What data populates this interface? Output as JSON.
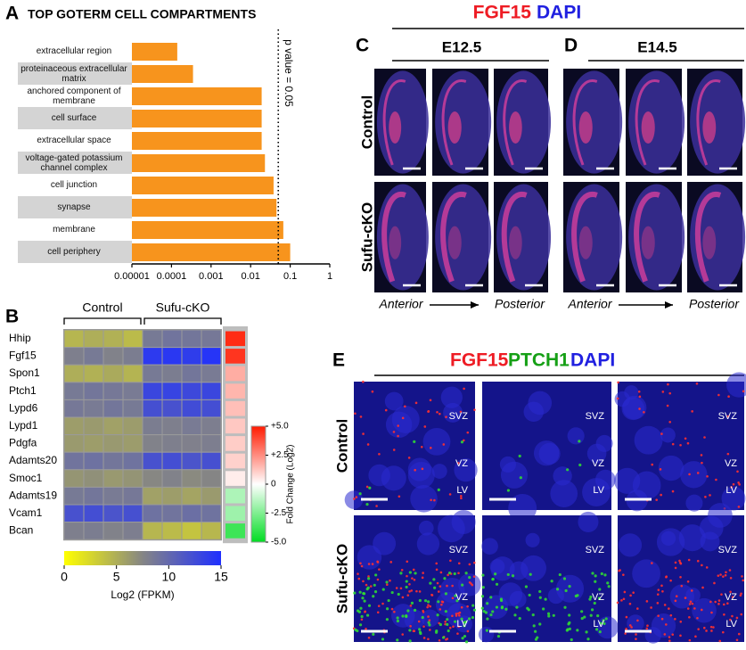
{
  "chart_data": [
    {
      "type": "hbar",
      "panel": "A",
      "title": "TOP GOTERM CELL COMPARTMENTS",
      "categories": [
        "extracellular region",
        "proteinaceous extracellular matrix",
        "anchored component of membrane",
        "cell surface",
        "extracellular space",
        "voltage-gated potassium channel complex",
        "cell junction",
        "synapse",
        "membrane",
        "cell periphery"
      ],
      "values": [
        0.00014,
        0.00035,
        0.019,
        0.019,
        0.019,
        0.023,
        0.038,
        0.045,
        0.067,
        0.1
      ],
      "color": "#f7941d",
      "xscale": "log",
      "xlim": [
        1e-05,
        1
      ],
      "xticks": [
        1e-05,
        0.0001,
        0.001,
        0.01,
        0.1,
        1
      ],
      "reference_line": {
        "value": 0.05,
        "label": "p value = 0.05"
      }
    },
    {
      "type": "heatmap",
      "panel": "B",
      "groups": [
        "Control",
        "Sufu-cKO"
      ],
      "rows": [
        "Hhip",
        "Fgf15",
        "Spon1",
        "Ptch1",
        "Lypd6",
        "Lypd1",
        "Pdgfa",
        "Adamts20",
        "Smoc1",
        "Adamts19",
        "Vcam1",
        "Bcan"
      ],
      "values": [
        [
          4.5,
          5,
          4.8,
          4.2,
          8.5,
          9,
          8.8,
          8.6
        ],
        [
          8,
          8.5,
          7.8,
          8.2,
          14,
          14.2,
          13.8,
          14.5
        ],
        [
          5,
          4.8,
          5.2,
          4.6,
          8.5,
          8.2,
          8.8,
          8.4
        ],
        [
          8.5,
          8.8,
          8.6,
          8.4,
          13,
          13.2,
          12.8,
          13
        ],
        [
          8.6,
          8.4,
          8.8,
          8.5,
          12.2,
          12,
          12.5,
          12.3
        ],
        [
          6,
          6.2,
          5.8,
          6.1,
          8.2,
          8,
          8.4,
          8.1
        ],
        [
          6.2,
          6,
          6.3,
          6.1,
          7.8,
          8,
          7.9,
          8.1
        ],
        [
          9,
          9.2,
          8.8,
          9.1,
          12,
          12.3,
          11.8,
          12.1
        ],
        [
          6.5,
          6.8,
          6.3,
          6.6,
          7.4,
          7.8,
          7.2,
          7.5
        ],
        [
          8.5,
          8.8,
          8.4,
          8.6,
          5.8,
          6,
          5.6,
          6.2
        ],
        [
          12,
          12.3,
          11.8,
          12.1,
          9.2,
          9,
          9.4,
          9.1
        ],
        [
          8,
          8.2,
          7.8,
          8.1,
          4.5,
          4.2,
          3.6,
          4.4
        ]
      ],
      "colormap": [
        "#ffff00",
        "#858585",
        "#1f2fff"
      ],
      "clim": [
        0,
        15
      ],
      "cticks": [
        0,
        5,
        10,
        15
      ],
      "colorbar_label": "Log2 (FPKM)",
      "fold_change": [
        4.6,
        4.4,
        1.8,
        1.6,
        1.4,
        1.2,
        1.1,
        1.0,
        0.4,
        -1.6,
        -1.9,
        -3.8
      ],
      "fold_colormap": [
        "#00dd22",
        "#ffffff",
        "#ff1a00"
      ],
      "fold_clim": [
        -5,
        5
      ],
      "fold_ticks": [
        {
          "value": 5,
          "label": "+5.0"
        },
        {
          "value": 2.5,
          "label": "+2.5"
        },
        0,
        -2.5,
        {
          "value": -5,
          "label": "-5.0"
        }
      ],
      "fold_label": "Fold Change (Log2)"
    }
  ],
  "panel_c": {
    "letter": "C",
    "stage": "E12.5"
  },
  "panel_d": {
    "letter": "D",
    "stage": "E14.5"
  },
  "panels_cd": {
    "stain": [
      "FGF15",
      "DAPI"
    ],
    "rows": [
      "Control",
      "Sufu-cKO"
    ],
    "axis": [
      "Anterior",
      "Posterior"
    ]
  },
  "panel_e": {
    "letter": "E",
    "stain": [
      "FGF15",
      "PTCH1",
      "DAPI"
    ],
    "rows": [
      "Control",
      "Sufu-cKO"
    ],
    "zones": [
      "SVZ",
      "VZ",
      "LV"
    ]
  }
}
